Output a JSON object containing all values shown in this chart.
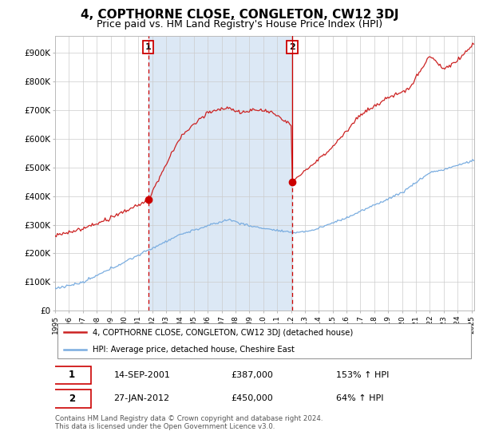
{
  "title": "4, COPTHORNE CLOSE, CONGLETON, CW12 3DJ",
  "subtitle": "Price paid vs. HM Land Registry's House Price Index (HPI)",
  "title_fontsize": 11,
  "subtitle_fontsize": 9,
  "ylabel_ticks": [
    "£0",
    "£100K",
    "£200K",
    "£300K",
    "£400K",
    "£500K",
    "£600K",
    "£700K",
    "£800K",
    "£900K"
  ],
  "ytick_values": [
    0,
    100000,
    200000,
    300000,
    400000,
    500000,
    600000,
    700000,
    800000,
    900000
  ],
  "ylim": [
    0,
    960000
  ],
  "xlim_start": 1995.0,
  "xlim_end": 2025.2,
  "sale1_x": 2001.71,
  "sale1_y": 387000,
  "sale2_x": 2012.08,
  "sale2_y": 450000,
  "sale_color": "#cc0000",
  "hpi_color": "#7aade0",
  "line_color_red": "#cc2222",
  "shade_color": "#dce8f5",
  "legend_entry1": "4, COPTHORNE CLOSE, CONGLETON, CW12 3DJ (detached house)",
  "legend_entry2": "HPI: Average price, detached house, Cheshire East",
  "annotation1_date": "14-SEP-2001",
  "annotation1_price": "£387,000",
  "annotation1_hpi": "153% ↑ HPI",
  "annotation2_date": "27-JAN-2012",
  "annotation2_price": "£450,000",
  "annotation2_hpi": "64% ↑ HPI",
  "footer": "Contains HM Land Registry data © Crown copyright and database right 2024.\nThis data is licensed under the Open Government Licence v3.0.",
  "background_color": "#ffffff",
  "grid_color": "#cccccc"
}
